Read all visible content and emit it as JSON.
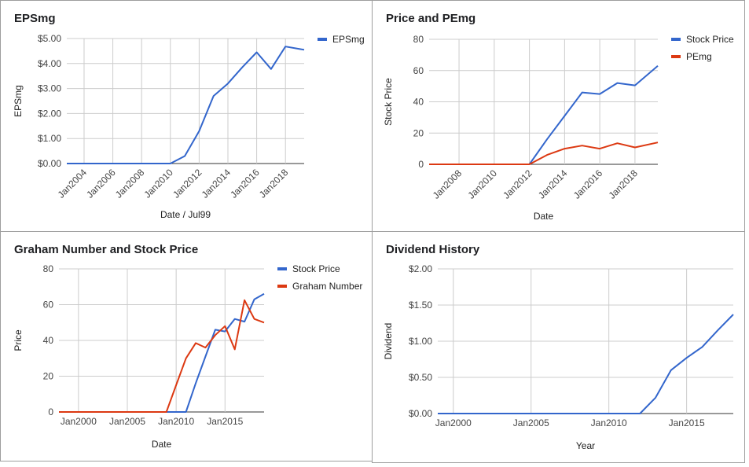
{
  "chart_data": [
    {
      "type": "line",
      "title": "EPSmg",
      "xlabel": "Date / Jul99",
      "ylabel": "EPSmg",
      "x_tick_labels": [
        "Jan2004",
        "Jan2006",
        "Jan2008",
        "Jan2010",
        "Jan2012",
        "Jan2014",
        "Jan2016",
        "Jan2018"
      ],
      "x_ticks": [
        2004,
        2006,
        2008,
        2010,
        2012,
        2014,
        2016,
        2018
      ],
      "xlim": [
        2002.8,
        2019.3
      ],
      "y_tick_labels": [
        "$0.00",
        "$1.00",
        "$2.00",
        "$3.00",
        "$4.00",
        "$5.00"
      ],
      "y_ticks": [
        0,
        1,
        2,
        3,
        4,
        5
      ],
      "ylim": [
        0,
        5
      ],
      "grid": true,
      "legend": "top-right",
      "series": [
        {
          "name": "EPSmg",
          "color": "#3366cc",
          "x": [
            2002.8,
            2010.0,
            2011.0,
            2012.0,
            2013.0,
            2014.0,
            2015.0,
            2016.0,
            2017.0,
            2018.0,
            2019.0,
            2019.3
          ],
          "y": [
            0,
            0,
            0.3,
            1.3,
            2.7,
            3.2,
            3.85,
            4.45,
            3.78,
            4.68,
            4.58,
            4.55
          ]
        }
      ]
    },
    {
      "type": "line",
      "title": "Price and PEmg",
      "xlabel": "Date",
      "ylabel": "Stock Price",
      "x_tick_labels": [
        "Jan2008",
        "Jan2010",
        "Jan2012",
        "Jan2014",
        "Jan2016",
        "Jan2018"
      ],
      "x_ticks": [
        2008,
        2010,
        2012,
        2014,
        2016,
        2018
      ],
      "xlim": [
        2006.3,
        2019.3
      ],
      "y_tick_labels": [
        "0",
        "20",
        "40",
        "60",
        "80"
      ],
      "y_ticks": [
        0,
        20,
        40,
        60,
        80
      ],
      "ylim": [
        0,
        80
      ],
      "grid": true,
      "legend": "top-right",
      "series": [
        {
          "name": "Stock Price",
          "color": "#3366cc",
          "x": [
            2006.3,
            2012.0,
            2013.0,
            2014.0,
            2015.0,
            2016.0,
            2017.0,
            2018.0,
            2019.3
          ],
          "y": [
            0,
            0,
            16,
            31,
            46,
            45,
            52,
            50.5,
            63
          ]
        },
        {
          "name": "PEmg",
          "color": "#dc3912",
          "x": [
            2006.3,
            2012.0,
            2013.0,
            2014.0,
            2015.0,
            2016.0,
            2017.0,
            2018.0,
            2019.3
          ],
          "y": [
            0,
            0,
            6,
            10,
            12,
            10,
            13.5,
            10.8,
            14
          ]
        }
      ]
    },
    {
      "type": "line",
      "title": "Graham Number and Stock Price",
      "xlabel": "Date",
      "ylabel": "Price",
      "x_tick_labels": [
        "Jan2000",
        "Jan2005",
        "Jan2010",
        "Jan2015"
      ],
      "x_ticks": [
        2000,
        2005,
        2010,
        2015
      ],
      "xlim": [
        1998.0,
        2019.0
      ],
      "y_tick_labels": [
        "0",
        "20",
        "40",
        "60",
        "80"
      ],
      "y_ticks": [
        0,
        20,
        40,
        60,
        80
      ],
      "ylim": [
        0,
        80
      ],
      "grid": true,
      "legend": "top-right",
      "series": [
        {
          "name": "Stock Price",
          "color": "#3366cc",
          "x": [
            1998.0,
            2011.0,
            2012.0,
            2013.0,
            2014.0,
            2015.0,
            2016.0,
            2017.0,
            2018.0,
            2019.0
          ],
          "y": [
            0,
            0,
            16,
            31,
            46,
            45,
            52,
            50.5,
            63,
            66
          ]
        },
        {
          "name": "Graham Number",
          "color": "#dc3912",
          "x": [
            1998.0,
            2009.0,
            2010.0,
            2011.0,
            2012.0,
            2013.0,
            2014.0,
            2015.0,
            2016.0,
            2017.0,
            2018.0,
            2019.0
          ],
          "y": [
            0,
            0,
            15,
            30,
            38.5,
            36,
            43,
            48,
            35,
            62.5,
            52,
            50
          ]
        }
      ]
    },
    {
      "type": "line",
      "title": "Dividend History",
      "xlabel": "Year",
      "ylabel": "Dividend",
      "x_tick_labels": [
        "Jan2000",
        "Jan2005",
        "Jan2010",
        "Jan2015"
      ],
      "x_ticks": [
        2000,
        2005,
        2010,
        2015
      ],
      "xlim": [
        1999.0,
        2018.0
      ],
      "y_tick_labels": [
        "$0.00",
        "$0.50",
        "$1.00",
        "$1.50",
        "$2.00"
      ],
      "y_ticks": [
        0,
        0.5,
        1,
        1.5,
        2
      ],
      "ylim": [
        0,
        2
      ],
      "grid": true,
      "legend": "none",
      "series": [
        {
          "name": "",
          "color": "#3366cc",
          "x": [
            1999.0,
            2012.0,
            2013.0,
            2014.0,
            2015.0,
            2016.0,
            2017.0,
            2018.0
          ],
          "y": [
            0,
            0,
            0.22,
            0.6,
            0.77,
            0.92,
            1.15,
            1.37
          ]
        }
      ]
    }
  ]
}
